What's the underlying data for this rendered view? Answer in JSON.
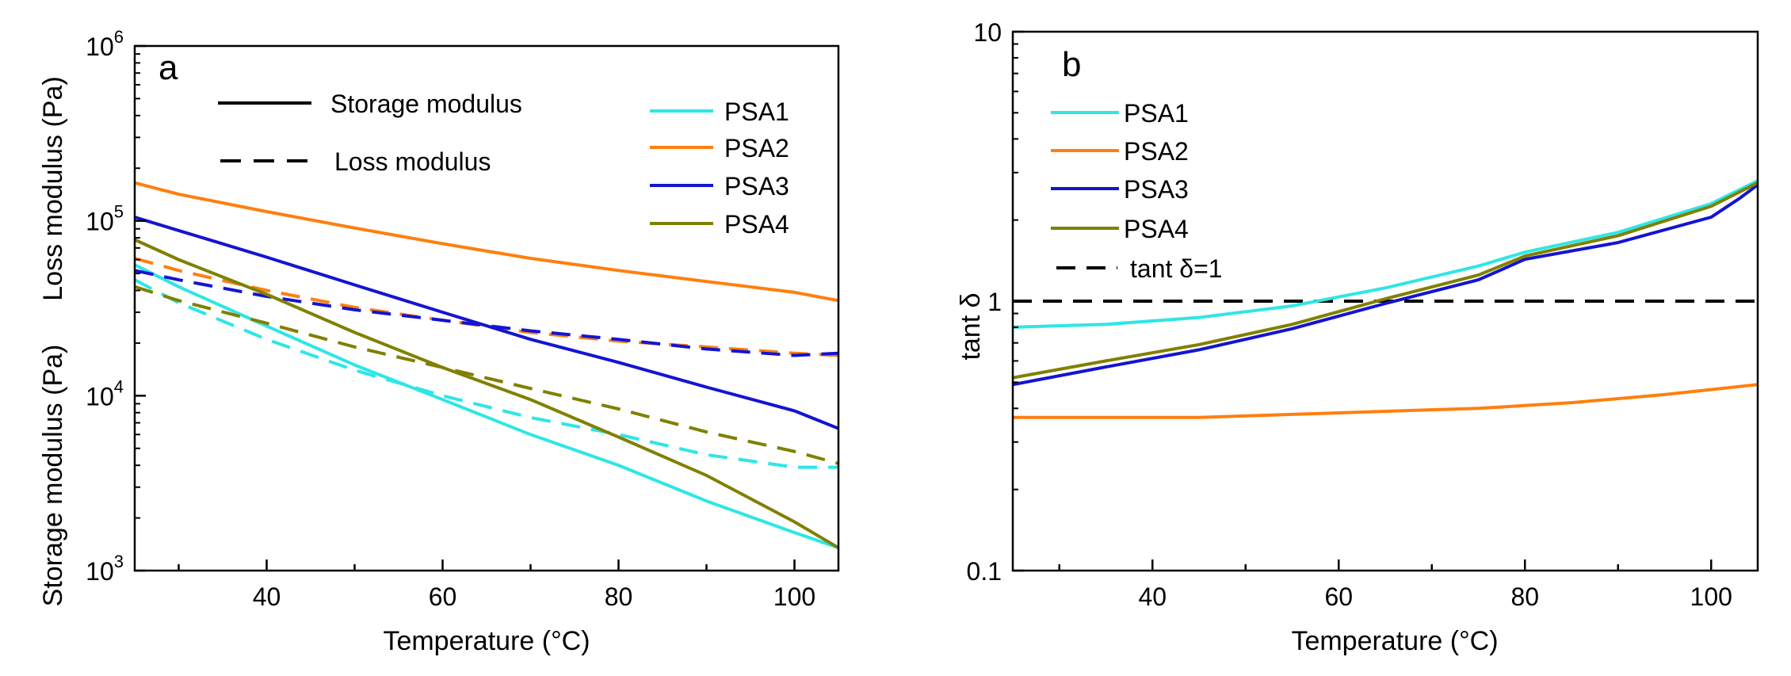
{
  "chart_data": [
    {
      "panel": "a",
      "type": "line",
      "xlabel": "Temperature (°C)",
      "ylabel_storage": "Storage modulus (Pa)",
      "ylabel_loss": "Loss modulus (Pa)",
      "xlim": [
        25,
        105
      ],
      "ylim": [
        1000,
        1000000
      ],
      "yscale": "log",
      "xticks": [
        "40",
        "60",
        "80",
        "100"
      ],
      "yticks": [
        {
          "base": "10",
          "exp": "3"
        },
        {
          "base": "10",
          "exp": "4"
        },
        {
          "base": "10",
          "exp": "5"
        },
        {
          "base": "10",
          "exp": "6"
        }
      ],
      "style_legend": [
        {
          "label": "Storage modulus",
          "dash": "solid"
        },
        {
          "label": "Loss modulus",
          "dash": "dashed"
        }
      ],
      "series": [
        {
          "name": "PSA1",
          "color": "#2ee6e6",
          "storage": [
            [
              25,
              56000
            ],
            [
              30,
              42000
            ],
            [
              40,
              25000
            ],
            [
              50,
              15000
            ],
            [
              60,
              9500
            ],
            [
              70,
              6000
            ],
            [
              80,
              4000
            ],
            [
              90,
              2500
            ],
            [
              100,
              1650
            ],
            [
              105,
              1350
            ]
          ],
          "loss": [
            [
              25,
              46000
            ],
            [
              30,
              34000
            ],
            [
              40,
              21000
            ],
            [
              50,
              14000
            ],
            [
              60,
              10000
            ],
            [
              70,
              7500
            ],
            [
              80,
              6000
            ],
            [
              90,
              4600
            ],
            [
              100,
              3900
            ],
            [
              105,
              3900
            ]
          ]
        },
        {
          "name": "PSA2",
          "color": "#ff7f0e",
          "storage": [
            [
              25,
              165000
            ],
            [
              30,
              142000
            ],
            [
              40,
              113000
            ],
            [
              50,
              91000
            ],
            [
              60,
              74000
            ],
            [
              70,
              61000
            ],
            [
              80,
              52000
            ],
            [
              90,
              45000
            ],
            [
              100,
              39000
            ],
            [
              105,
              35000
            ]
          ],
          "loss": [
            [
              25,
              61000
            ],
            [
              30,
              52000
            ],
            [
              40,
              40000
            ],
            [
              50,
              32000
            ],
            [
              60,
              27000
            ],
            [
              70,
              23000
            ],
            [
              80,
              20500
            ],
            [
              90,
              19000
            ],
            [
              100,
              17500
            ],
            [
              105,
              17000
            ]
          ]
        },
        {
          "name": "PSA3",
          "color": "#1414d2",
          "storage": [
            [
              25,
              105000
            ],
            [
              30,
              88000
            ],
            [
              40,
              62000
            ],
            [
              50,
              43000
            ],
            [
              60,
              30000
            ],
            [
              70,
              21000
            ],
            [
              80,
              15500
            ],
            [
              90,
              11200
            ],
            [
              100,
              8200
            ],
            [
              105,
              6500
            ]
          ],
          "loss": [
            [
              25,
              52000
            ],
            [
              30,
              46000
            ],
            [
              40,
              37000
            ],
            [
              50,
              31000
            ],
            [
              60,
              27000
            ],
            [
              70,
              23500
            ],
            [
              80,
              21000
            ],
            [
              90,
              18500
            ],
            [
              100,
              17000
            ],
            [
              105,
              17500
            ]
          ]
        },
        {
          "name": "PSA4",
          "color": "#808000",
          "storage": [
            [
              25,
              78000
            ],
            [
              30,
              60000
            ],
            [
              40,
              38000
            ],
            [
              50,
              23000
            ],
            [
              60,
              14500
            ],
            [
              70,
              9500
            ],
            [
              80,
              5800
            ],
            [
              90,
              3500
            ],
            [
              100,
              1900
            ],
            [
              105,
              1350
            ]
          ],
          "loss": [
            [
              25,
              42000
            ],
            [
              30,
              35000
            ],
            [
              40,
              26000
            ],
            [
              50,
              19000
            ],
            [
              60,
              14500
            ],
            [
              70,
              11000
            ],
            [
              80,
              8400
            ],
            [
              90,
              6200
            ],
            [
              100,
              4800
            ],
            [
              105,
              4100
            ]
          ]
        }
      ]
    },
    {
      "panel": "b",
      "type": "line",
      "xlabel": "Temperature (°C)",
      "ylabel": "tant δ",
      "xlim": [
        25,
        105
      ],
      "ylim": [
        0.1,
        10
      ],
      "yscale": "log",
      "xticks": [
        "40",
        "60",
        "80",
        "100"
      ],
      "yticks": [
        "0.1",
        "1",
        "10"
      ],
      "reference_line": {
        "label": "tant δ=1",
        "value": 1,
        "dash": "dashed",
        "color": "#000000"
      },
      "series": [
        {
          "name": "PSA1",
          "color": "#2ee6e6",
          "values": [
            [
              25,
              0.8
            ],
            [
              35,
              0.82
            ],
            [
              45,
              0.87
            ],
            [
              55,
              0.96
            ],
            [
              65,
              1.12
            ],
            [
              75,
              1.35
            ],
            [
              80,
              1.52
            ],
            [
              90,
              1.8
            ],
            [
              100,
              2.3
            ],
            [
              105,
              2.8
            ]
          ]
        },
        {
          "name": "PSA2",
          "color": "#ff7f0e",
          "values": [
            [
              25,
              0.37
            ],
            [
              35,
              0.37
            ],
            [
              45,
              0.37
            ],
            [
              55,
              0.38
            ],
            [
              65,
              0.39
            ],
            [
              75,
              0.4
            ],
            [
              85,
              0.42
            ],
            [
              95,
              0.45
            ],
            [
              105,
              0.49
            ]
          ]
        },
        {
          "name": "PSA3",
          "color": "#1414d2",
          "values": [
            [
              25,
              0.49
            ],
            [
              35,
              0.57
            ],
            [
              45,
              0.66
            ],
            [
              55,
              0.79
            ],
            [
              65,
              0.98
            ],
            [
              75,
              1.2
            ],
            [
              80,
              1.43
            ],
            [
              90,
              1.65
            ],
            [
              100,
              2.05
            ],
            [
              103,
              2.4
            ],
            [
              105,
              2.7
            ]
          ]
        },
        {
          "name": "PSA4",
          "color": "#808000",
          "values": [
            [
              25,
              0.52
            ],
            [
              35,
              0.6
            ],
            [
              45,
              0.69
            ],
            [
              55,
              0.82
            ],
            [
              65,
              1.02
            ],
            [
              75,
              1.25
            ],
            [
              80,
              1.47
            ],
            [
              90,
              1.75
            ],
            [
              100,
              2.25
            ],
            [
              105,
              2.75
            ]
          ]
        }
      ]
    }
  ]
}
